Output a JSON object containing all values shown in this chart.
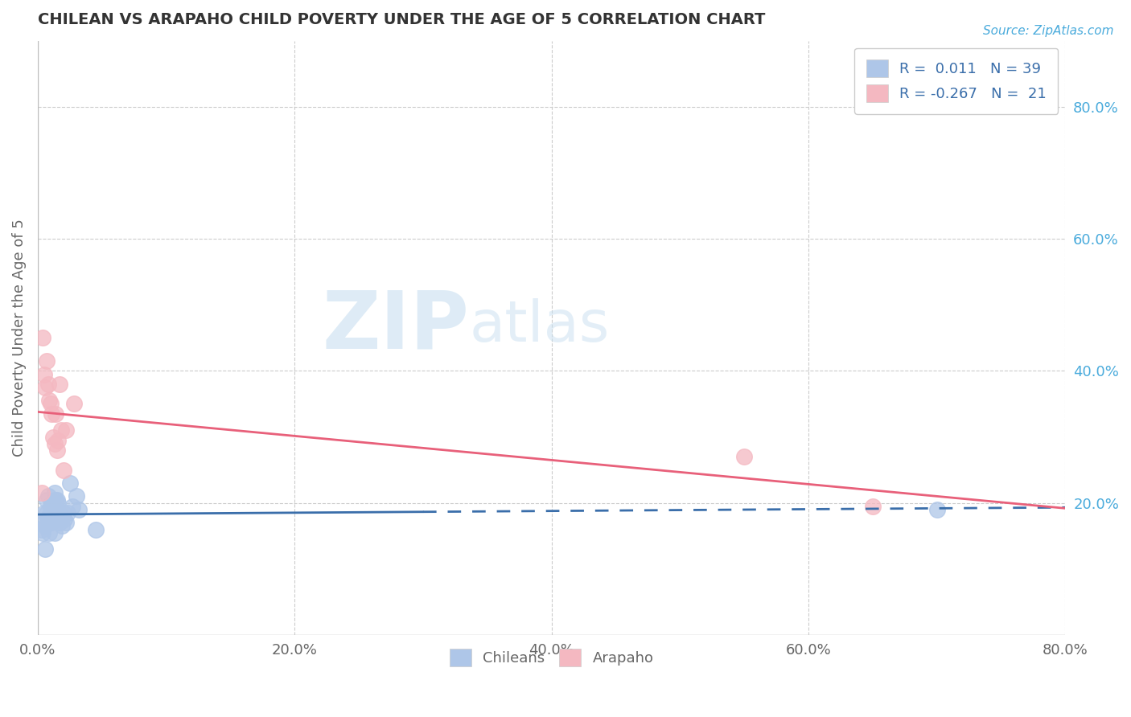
{
  "title": "CHILEAN VS ARAPAHO CHILD POVERTY UNDER THE AGE OF 5 CORRELATION CHART",
  "source": "Source: ZipAtlas.com",
  "ylabel": "Child Poverty Under the Age of 5",
  "xlim": [
    0.0,
    0.8
  ],
  "ylim": [
    0.0,
    0.9
  ],
  "xticks": [
    0.0,
    0.2,
    0.4,
    0.6,
    0.8
  ],
  "xticklabels": [
    "0.0%",
    "20.0%",
    "40.0%",
    "60.0%",
    "80.0%"
  ],
  "yticks_right": [
    0.2,
    0.4,
    0.6,
    0.8
  ],
  "yticklabels_right": [
    "20.0%",
    "40.0%",
    "60.0%",
    "80.0%"
  ],
  "watermark_zip": "ZIP",
  "watermark_atlas": "atlas",
  "chilean_color": "#aec6e8",
  "arapaho_color": "#f4b8c1",
  "chilean_line_color": "#3a6eaa",
  "arapaho_line_color": "#e8607a",
  "background_color": "#ffffff",
  "grid_color": "#cccccc",
  "chilean_x": [
    0.003,
    0.004,
    0.005,
    0.005,
    0.006,
    0.006,
    0.007,
    0.007,
    0.008,
    0.008,
    0.009,
    0.009,
    0.01,
    0.01,
    0.011,
    0.011,
    0.012,
    0.012,
    0.013,
    0.013,
    0.014,
    0.014,
    0.015,
    0.015,
    0.016,
    0.016,
    0.017,
    0.018,
    0.019,
    0.02,
    0.021,
    0.022,
    0.023,
    0.025,
    0.027,
    0.03,
    0.032,
    0.045,
    0.7
  ],
  "chilean_y": [
    0.16,
    0.155,
    0.17,
    0.185,
    0.13,
    0.165,
    0.185,
    0.205,
    0.175,
    0.21,
    0.155,
    0.18,
    0.17,
    0.195,
    0.185,
    0.2,
    0.175,
    0.2,
    0.155,
    0.215,
    0.18,
    0.205,
    0.19,
    0.205,
    0.185,
    0.2,
    0.17,
    0.175,
    0.165,
    0.185,
    0.175,
    0.17,
    0.185,
    0.23,
    0.195,
    0.21,
    0.19,
    0.16,
    0.19
  ],
  "arapaho_x": [
    0.003,
    0.004,
    0.005,
    0.006,
    0.007,
    0.008,
    0.009,
    0.01,
    0.011,
    0.012,
    0.013,
    0.014,
    0.015,
    0.016,
    0.017,
    0.018,
    0.02,
    0.022,
    0.028,
    0.55,
    0.65
  ],
  "arapaho_y": [
    0.215,
    0.45,
    0.395,
    0.375,
    0.415,
    0.38,
    0.355,
    0.35,
    0.335,
    0.3,
    0.29,
    0.335,
    0.28,
    0.295,
    0.38,
    0.31,
    0.25,
    0.31,
    0.35,
    0.27,
    0.195
  ],
  "chilean_line_solid_end": 0.3,
  "arapaho_line_start_y": 0.295,
  "arapaho_line_end_y": 0.2
}
